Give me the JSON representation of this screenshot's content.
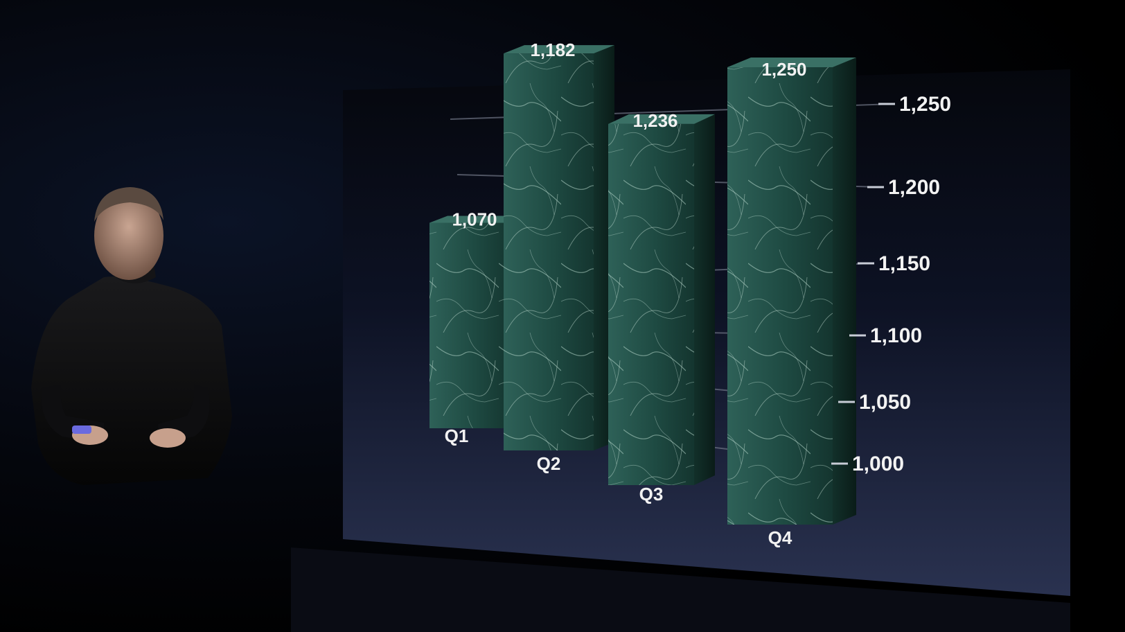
{
  "colors": {
    "background": "#000000",
    "screen_top": "#05070d",
    "screen_bottom": "#2a3250",
    "bar_face": "#1f4a42",
    "bar_vein": "#b8d8cc",
    "label": "#f2f2f2"
  },
  "icons": {
    "presenter": "presenter-figure",
    "remote": "clicker-remote"
  },
  "chart_data": {
    "type": "bar",
    "style": "3d-marble-columns",
    "categories": [
      "Q1",
      "Q2",
      "Q3",
      "Q4"
    ],
    "values": [
      1070,
      1182,
      1236,
      1250
    ],
    "value_labels": [
      "1,070",
      "1,182",
      "1,236",
      "1,250"
    ],
    "title": "",
    "xlabel": "",
    "ylabel": "",
    "ylim": [
      1000,
      1250
    ],
    "yticks": [
      1000,
      1050,
      1100,
      1150,
      1200,
      1250
    ],
    "ytick_labels": [
      "1,000",
      "1,050",
      "1,100",
      "1,150",
      "1,200",
      "1,250"
    ],
    "grid": true,
    "legend": "none"
  }
}
